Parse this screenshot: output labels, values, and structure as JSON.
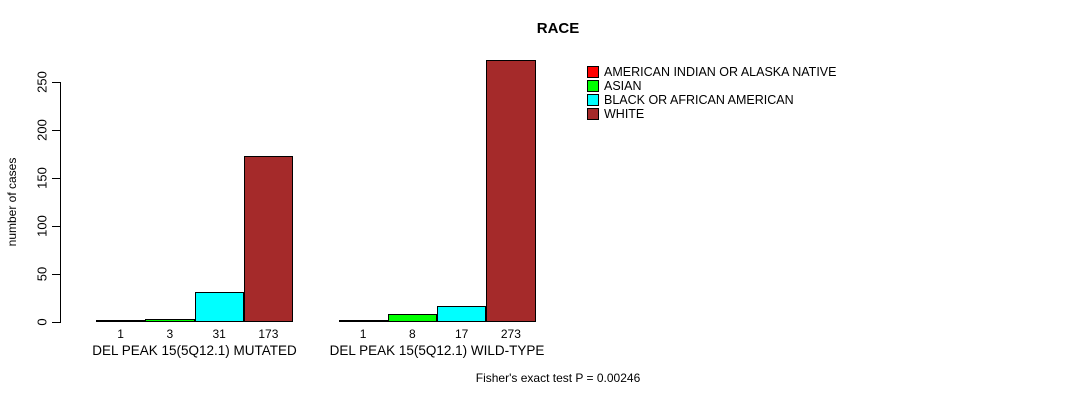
{
  "chart_data": {
    "type": "bar",
    "title": "RACE",
    "ylabel": "number of cases",
    "xlabel": "",
    "ylim": [
      0,
      250
    ],
    "yticks": [
      0,
      50,
      100,
      150,
      200,
      250
    ],
    "grid": false,
    "legend_position": "right",
    "categories": [
      "DEL PEAK 15(5Q12.1) MUTATED",
      "DEL PEAK 15(5Q12.1) WILD-TYPE"
    ],
    "series": [
      {
        "name": "AMERICAN INDIAN OR ALASKA NATIVE",
        "color": "#FF0000",
        "values": [
          1,
          1
        ]
      },
      {
        "name": "ASIAN",
        "color": "#00FF00",
        "values": [
          3,
          8
        ]
      },
      {
        "name": "BLACK OR AFRICAN AMERICAN",
        "color": "#00FFFF",
        "values": [
          31,
          17
        ]
      },
      {
        "name": "WHITE",
        "color": "#A52A2A",
        "values": [
          173,
          273
        ]
      }
    ],
    "bar_value_labels": [
      [
        "1",
        "3",
        "31",
        "173"
      ],
      [
        "1",
        "8",
        "17",
        "273"
      ]
    ],
    "annotation": "Fisher's exact test P = 0.00246"
  }
}
